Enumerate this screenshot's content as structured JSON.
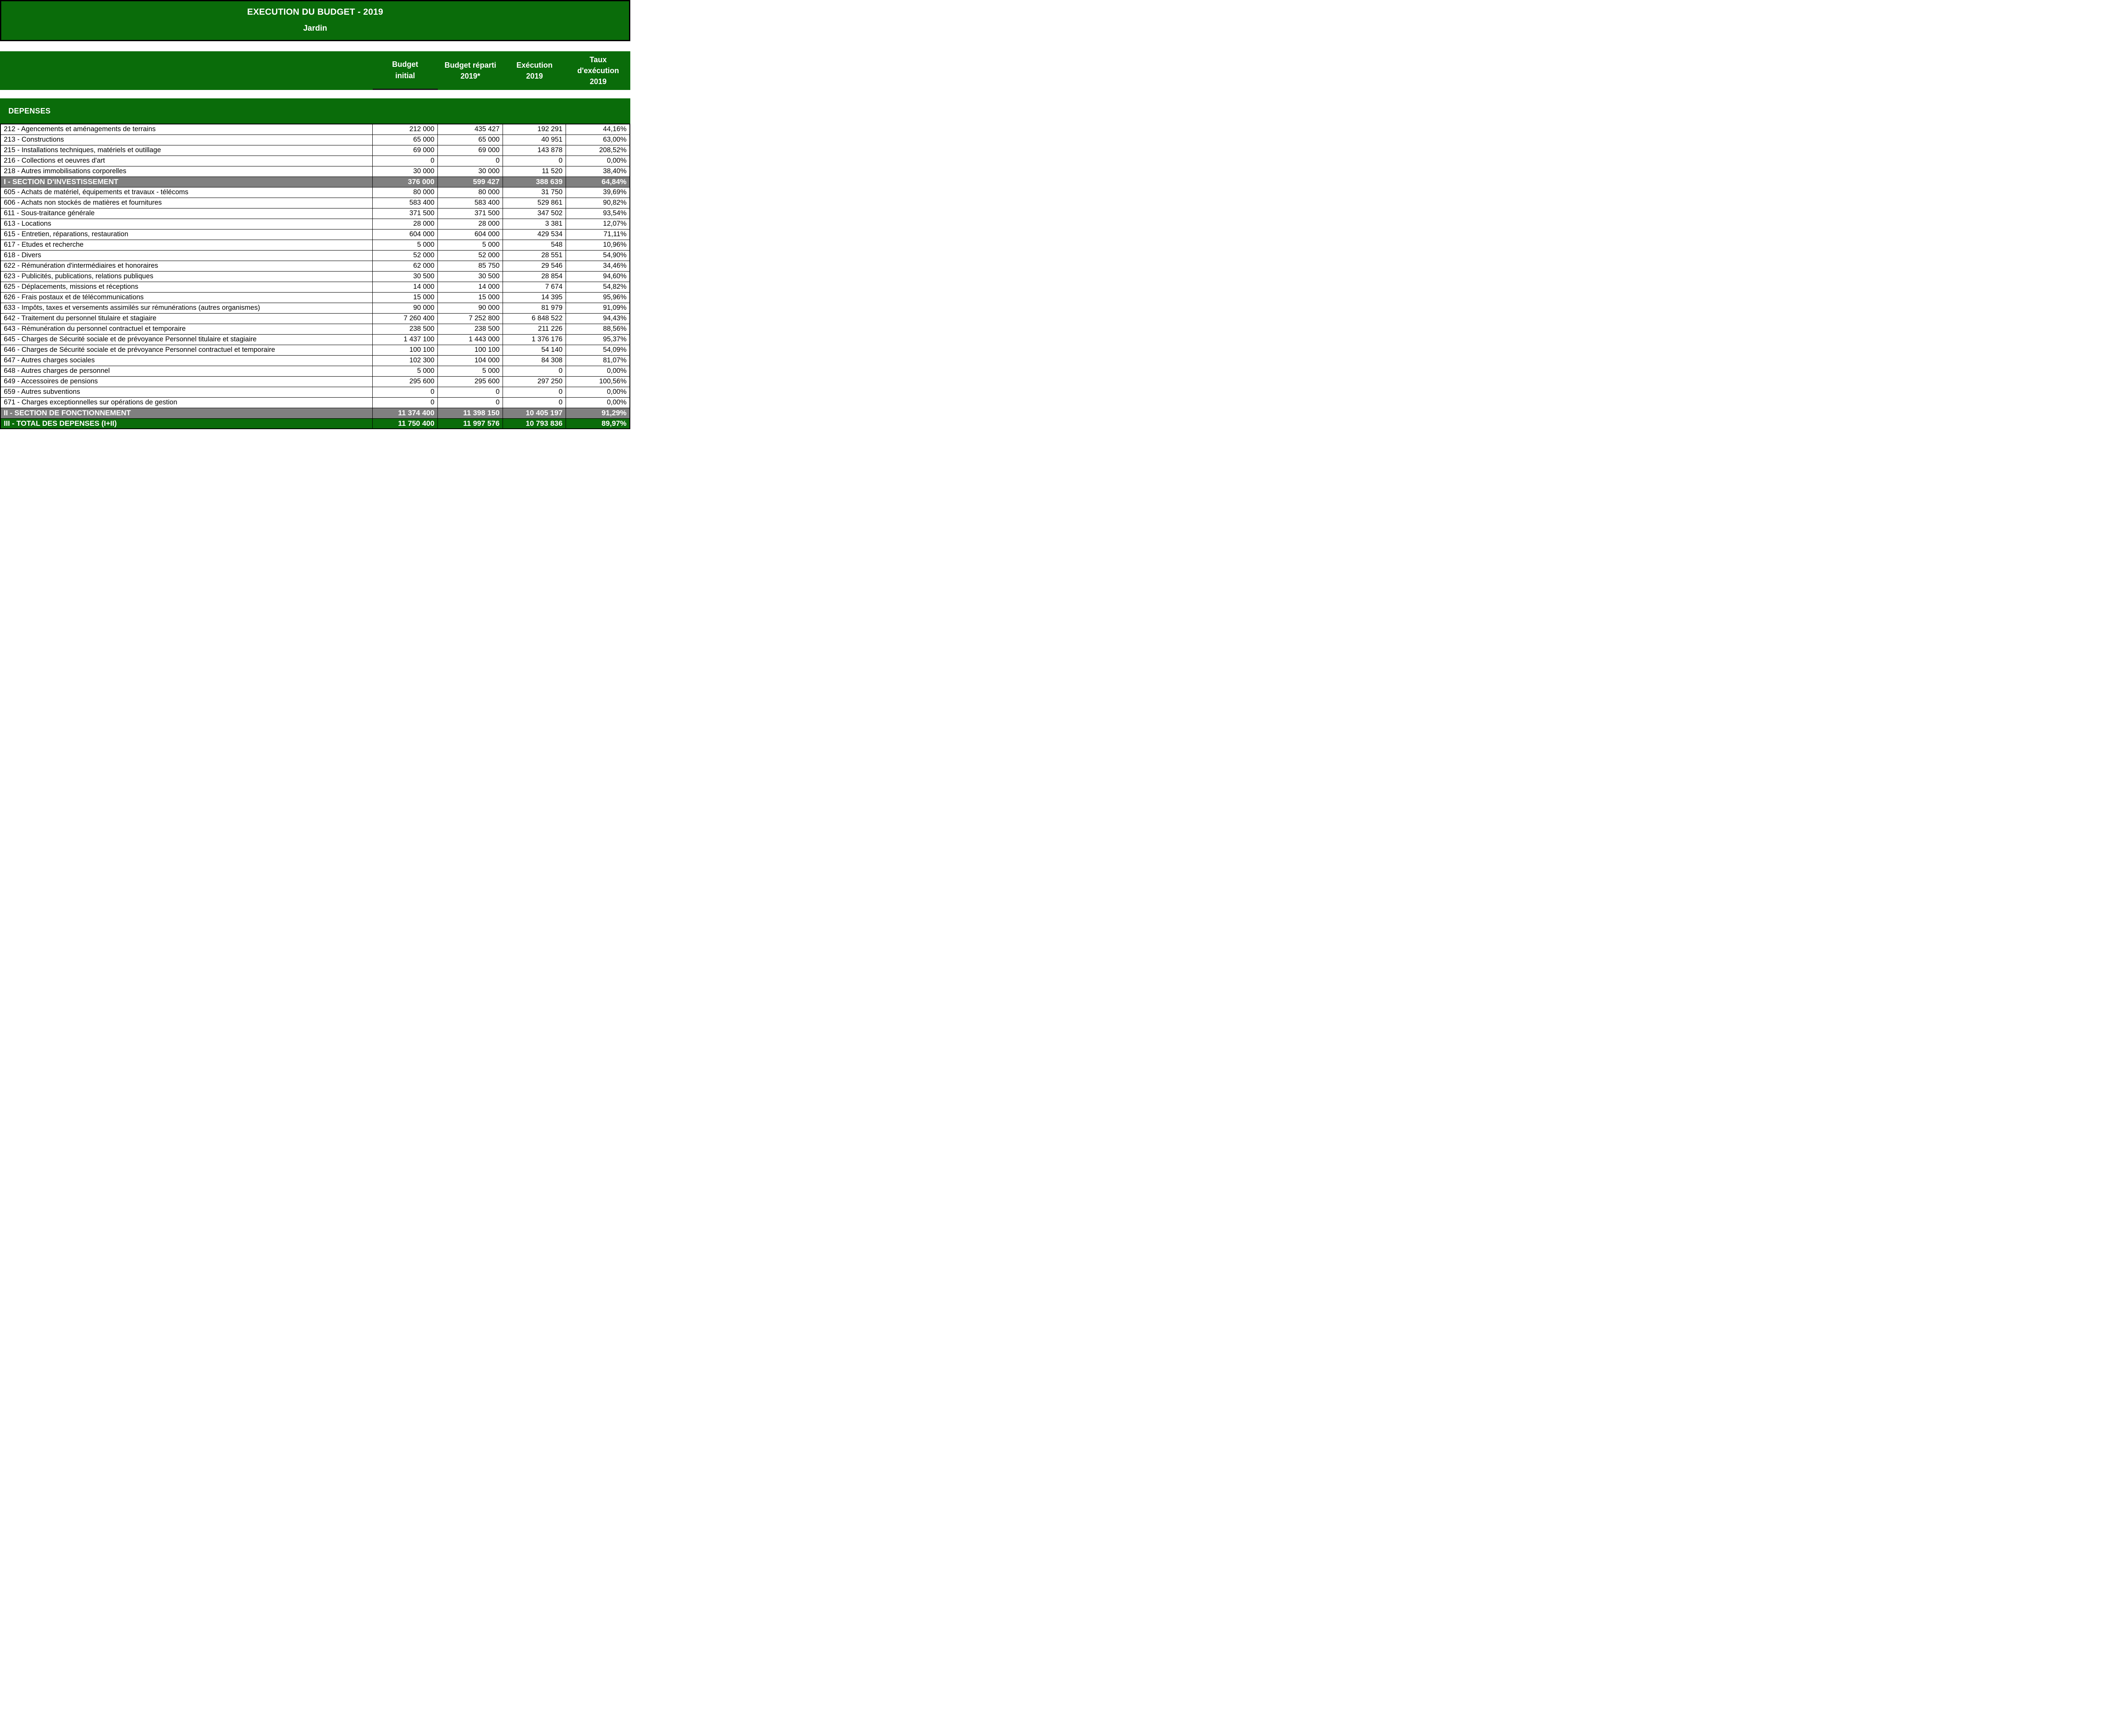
{
  "title": {
    "line1": "EXECUTION DU BUDGET - 2019",
    "line2": "Jardin"
  },
  "columns": [
    "Budget\ninitial",
    "Budget réparti\n2019*",
    "Exécution\n2019",
    "Taux\nd'exécution\n2019"
  ],
  "section_label": "DEPENSES",
  "colors": {
    "green": "#0a6c0a",
    "gray": "#808080"
  },
  "rows": [
    {
      "type": "data",
      "label": "212 - Agencements et aménagements de terrains",
      "values": [
        "212 000",
        "435 427",
        "192 291",
        "44,16%"
      ]
    },
    {
      "type": "data",
      "label": "213 - Constructions",
      "values": [
        "65 000",
        "65 000",
        "40 951",
        "63,00%"
      ]
    },
    {
      "type": "data",
      "label": "215 - Installations techniques, matériels et outillage",
      "values": [
        "69 000",
        "69 000",
        "143 878",
        "208,52%"
      ]
    },
    {
      "type": "data",
      "label": "216 - Collections et oeuvres d'art",
      "values": [
        "0",
        "0",
        "0",
        "0,00%"
      ]
    },
    {
      "type": "data",
      "label": "218 - Autres immobilisations corporelles",
      "values": [
        "30 000",
        "30 000",
        "11 520",
        "38,40%"
      ]
    },
    {
      "type": "section",
      "label": "I - SECTION D'INVESTISSEMENT",
      "values": [
        "376 000",
        "599 427",
        "388 639",
        "64,84%"
      ]
    },
    {
      "type": "data",
      "label": "605 - Achats de matériel, équipements et travaux - télécoms",
      "values": [
        "80 000",
        "80 000",
        "31 750",
        "39,69%"
      ]
    },
    {
      "type": "data",
      "label": "606 - Achats non stockés de matières et fournitures",
      "values": [
        "583 400",
        "583 400",
        "529 861",
        "90,82%"
      ]
    },
    {
      "type": "data",
      "label": "611 - Sous-traitance générale",
      "values": [
        "371 500",
        "371 500",
        "347 502",
        "93,54%"
      ]
    },
    {
      "type": "data",
      "label": "613 - Locations",
      "values": [
        "28 000",
        "28 000",
        "3 381",
        "12,07%"
      ]
    },
    {
      "type": "data",
      "label": "615 - Entretien, réparations, restauration",
      "values": [
        "604 000",
        "604 000",
        "429 534",
        "71,11%"
      ]
    },
    {
      "type": "data",
      "label": "617 - Etudes et recherche",
      "values": [
        "5 000",
        "5 000",
        "548",
        "10,96%"
      ]
    },
    {
      "type": "data",
      "label": "618 - Divers",
      "values": [
        "52 000",
        "52 000",
        "28 551",
        "54,90%"
      ]
    },
    {
      "type": "data",
      "label": "622 - Rémunération d'intermédiaires et honoraires",
      "values": [
        "62 000",
        "85 750",
        "29 546",
        "34,46%"
      ]
    },
    {
      "type": "data",
      "label": "623 - Publicités, publications, relations publiques",
      "values": [
        "30 500",
        "30 500",
        "28 854",
        "94,60%"
      ]
    },
    {
      "type": "data",
      "label": "625 - Déplacements, missions et réceptions",
      "values": [
        "14 000",
        "14 000",
        "7 674",
        "54,82%"
      ]
    },
    {
      "type": "data",
      "label": "626 - Frais postaux et de télécommunications",
      "values": [
        "15 000",
        "15 000",
        "14 395",
        "95,96%"
      ]
    },
    {
      "type": "data",
      "label": "633 - Impôts, taxes et versements assimilés sur rémunérations (autres organismes)",
      "values": [
        "90 000",
        "90 000",
        "81 979",
        "91,09%"
      ]
    },
    {
      "type": "data",
      "label": "642 - Traitement du personnel titulaire et stagiaire",
      "values": [
        "7 260 400",
        "7 252 800",
        "6 848 522",
        "94,43%"
      ]
    },
    {
      "type": "data",
      "label": "643 - Rémunération du personnel contractuel et temporaire",
      "values": [
        "238 500",
        "238 500",
        "211 226",
        "88,56%"
      ]
    },
    {
      "type": "data",
      "label": "645 - Charges de Sécurité sociale et de prévoyance Personnel titulaire et stagiaire",
      "values": [
        "1 437 100",
        "1 443 000",
        "1 376 176",
        "95,37%"
      ]
    },
    {
      "type": "data",
      "label": "646 - Charges de Sécurité sociale et de prévoyance Personnel contractuel et temporaire",
      "values": [
        "100 100",
        "100 100",
        "54 140",
        "54,09%"
      ]
    },
    {
      "type": "data",
      "label": "647 - Autres charges sociales",
      "values": [
        "102 300",
        "104 000",
        "84 308",
        "81,07%"
      ]
    },
    {
      "type": "data",
      "label": "648 - Autres charges de personnel",
      "values": [
        "5 000",
        "5 000",
        "0",
        "0,00%"
      ]
    },
    {
      "type": "data",
      "label": "649 - Accessoires de pensions",
      "values": [
        "295 600",
        "295 600",
        "297 250",
        "100,56%"
      ]
    },
    {
      "type": "data",
      "label": "659 - Autres subventions",
      "values": [
        "0",
        "0",
        "0",
        "0,00%"
      ]
    },
    {
      "type": "data",
      "label": "671 - Charges exceptionnelles sur opérations de gestion",
      "values": [
        "0",
        "0",
        "0",
        "0,00%"
      ]
    },
    {
      "type": "section",
      "label": "II - SECTION DE FONCTIONNEMENT",
      "values": [
        "11 374 400",
        "11 398 150",
        "10 405 197",
        "91,29%"
      ]
    },
    {
      "type": "total",
      "label": "III - TOTAL DES DEPENSES (I+II)",
      "values": [
        "11 750 400",
        "11 997 576",
        "10 793 836",
        "89,97%"
      ]
    }
  ]
}
